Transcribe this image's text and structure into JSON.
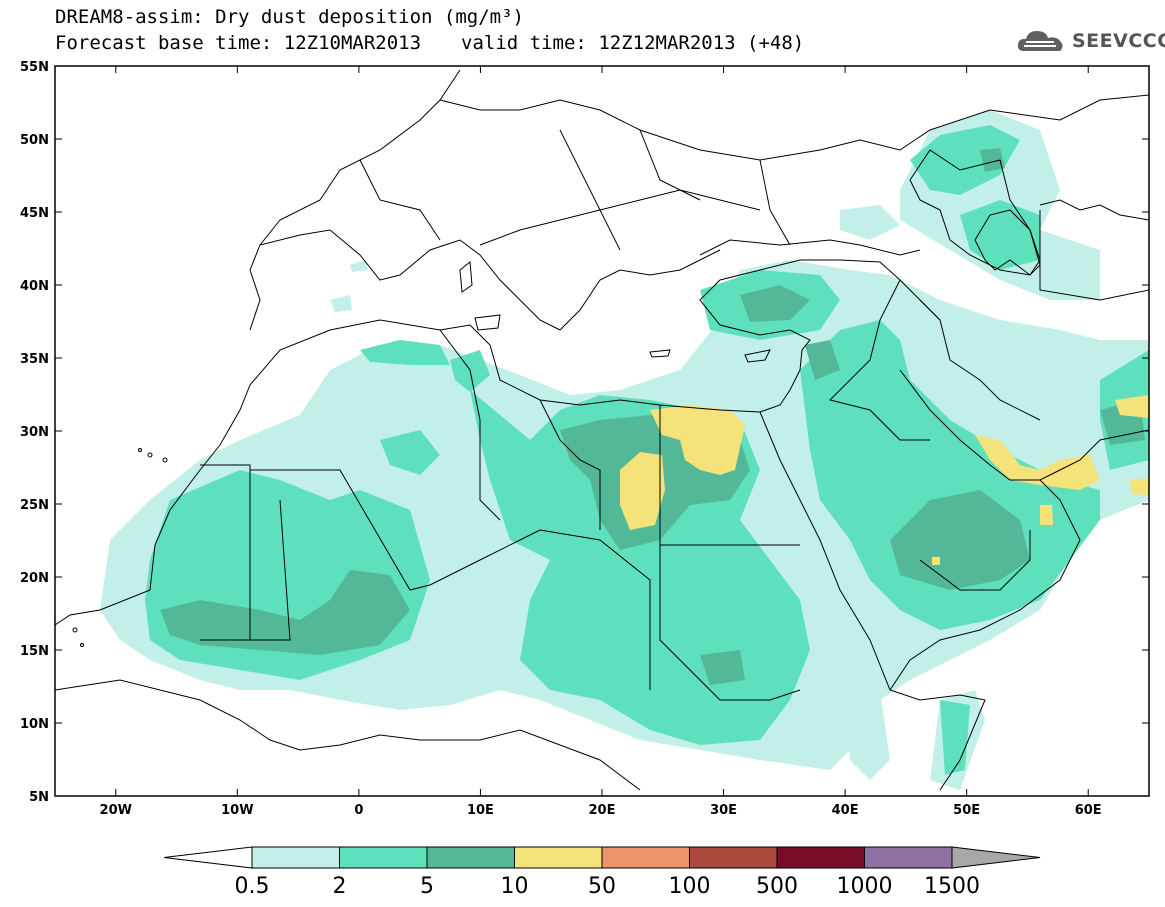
{
  "title": {
    "line1": "DREAM8-assim: Dry dust deposition (mg/m³)",
    "base_time": "Forecast base time: 12Z10MAR2013",
    "valid_time": "valid time: 12Z12MAR2013 (+48)"
  },
  "logo": {
    "text": "SEEVCCC",
    "icon": "cloud-logo-icon"
  },
  "map": {
    "lon_range": [
      -25,
      65
    ],
    "lat_range": [
      5,
      55
    ],
    "lon_ticks": [
      {
        "value": -20,
        "label": "20W"
      },
      {
        "value": -10,
        "label": "10W"
      },
      {
        "value": 0,
        "label": "0"
      },
      {
        "value": 10,
        "label": "10E"
      },
      {
        "value": 20,
        "label": "20E"
      },
      {
        "value": 30,
        "label": "30E"
      },
      {
        "value": 40,
        "label": "40E"
      },
      {
        "value": 50,
        "label": "50E"
      },
      {
        "value": 60,
        "label": "60E"
      }
    ],
    "lat_ticks": [
      {
        "value": 5,
        "label": "5N"
      },
      {
        "value": 10,
        "label": "10N"
      },
      {
        "value": 15,
        "label": "15N"
      },
      {
        "value": 20,
        "label": "20N"
      },
      {
        "value": 25,
        "label": "25N"
      },
      {
        "value": 30,
        "label": "30N"
      },
      {
        "value": 35,
        "label": "35N"
      },
      {
        "value": 40,
        "label": "40N"
      },
      {
        "value": 45,
        "label": "45N"
      },
      {
        "value": 50,
        "label": "50N"
      },
      {
        "value": 55,
        "label": "55N"
      }
    ]
  },
  "colorbar": {
    "low_arrow_color": "#ffffff",
    "high_arrow_color": "#a8a8a8",
    "bins": [
      {
        "color": "#c2f0e8"
      },
      {
        "color": "#5ee0bc"
      },
      {
        "color": "#52b898"
      },
      {
        "color": "#f4e27a"
      },
      {
        "color": "#ec946a"
      },
      {
        "color": "#ad4a3e"
      },
      {
        "color": "#7c0d2a"
      },
      {
        "color": "#9170a4"
      }
    ],
    "labels": [
      "0.5",
      "2",
      "5",
      "10",
      "50",
      "100",
      "500",
      "1000",
      "1500"
    ]
  }
}
